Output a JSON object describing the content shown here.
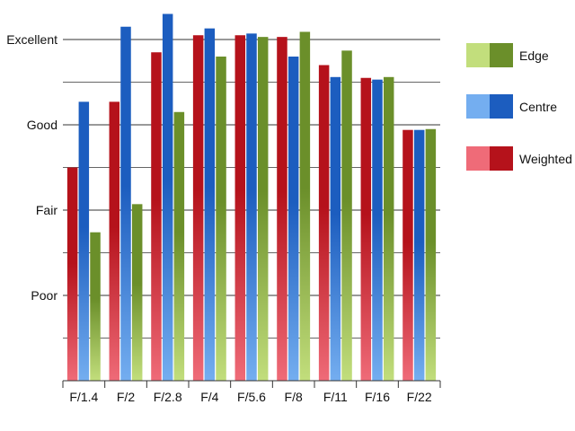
{
  "chart_data": {
    "type": "bar",
    "categories": [
      "F/1.4",
      "F/2",
      "F/2.8",
      "F/4",
      "F/5.6",
      "F/8",
      "F/11",
      "F/16",
      "F/22"
    ],
    "y_tick_labels": [
      "Poor",
      "Fair",
      "Good",
      "Excellent"
    ],
    "y_tick_values": [
      1,
      2,
      3,
      4
    ],
    "ylim": [
      0,
      4
    ],
    "grid": true,
    "legend_position": "right",
    "series": [
      {
        "name": "Weighted",
        "color_dark": "#b5121b",
        "color_light": "#ef6b78",
        "values": [
          2.5,
          3.27,
          3.85,
          4.05,
          4.05,
          4.03,
          3.7,
          3.55,
          2.94
        ]
      },
      {
        "name": "Centre",
        "color_dark": "#1c5dbf",
        "color_light": "#74aef0",
        "values": [
          3.27,
          4.15,
          4.3,
          4.13,
          4.07,
          3.8,
          3.56,
          3.53,
          2.94
        ]
      },
      {
        "name": "Edge",
        "color_dark": "#6b8f2a",
        "color_light": "#c2de7c",
        "values": [
          1.74,
          2.07,
          3.15,
          3.8,
          4.03,
          4.09,
          3.87,
          3.56,
          2.95
        ]
      }
    ],
    "legend_order": [
      "Edge",
      "Centre",
      "Weighted"
    ]
  }
}
